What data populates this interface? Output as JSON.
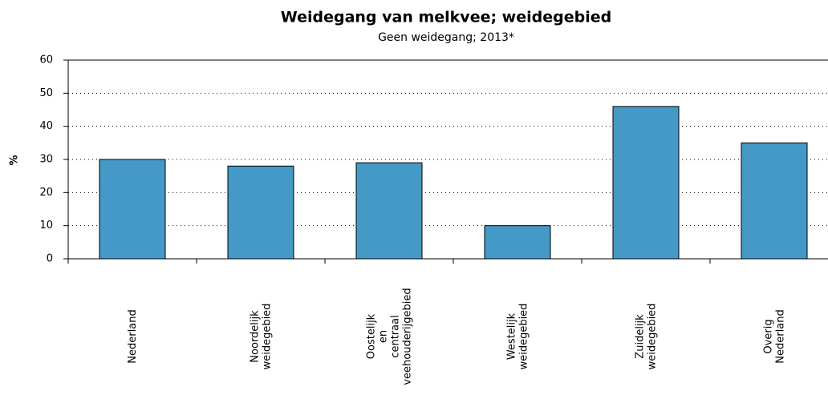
{
  "chart_data": {
    "type": "bar",
    "title": "Weidegang van melkvee; weidegebied",
    "subtitle": "Geen weidegang; 2013*",
    "y_label": "%",
    "categories": [
      "Nederland",
      "Noordelijk weidegebied",
      "Oostelijk en centraal veehouderijgebied",
      "Westelijk weidegebied",
      "Zuidelijk weidegebied",
      "Overig Nederland"
    ],
    "values": [
      30,
      28,
      29,
      10,
      46,
      35
    ],
    "color": "#4499c7",
    "ylim": [
      0,
      60
    ],
    "yticks": [
      0,
      10,
      20,
      30,
      40,
      50,
      60
    ],
    "grid": true
  }
}
